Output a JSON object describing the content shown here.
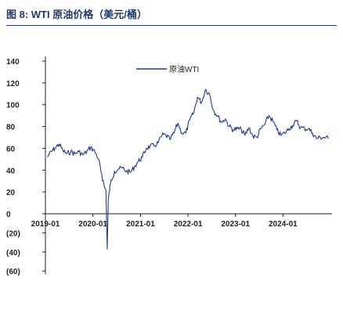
{
  "figure": {
    "title": "图 8:  WTI 原油价格（美元/桶）"
  },
  "chart_data": {
    "type": "line",
    "title": "图 8:  WTI 原油价格（美元/桶）",
    "xlabel": "",
    "ylabel": "",
    "ylim": [
      -60,
      140
    ],
    "y_ticks": [
      "140",
      "120",
      "100",
      "80",
      "60",
      "40",
      "20",
      "0",
      "(20)",
      "(40)",
      "(60)"
    ],
    "x_ticks": [
      "2019-01",
      "2020-01",
      "2021-01",
      "2022-01",
      "2023-01",
      "2024-01"
    ],
    "legend": {
      "position": "top-center",
      "entries": [
        "原油WTI"
      ]
    },
    "grid": false,
    "colors": {
      "line": "#1f3b8c",
      "axis": "#1f1f1f",
      "title": "#1f3b6b"
    },
    "series": [
      {
        "name": "原油WTI",
        "x": [
          "2019-01",
          "2019-02",
          "2019-03",
          "2019-04",
          "2019-05",
          "2019-06",
          "2019-07",
          "2019-08",
          "2019-09",
          "2019-10",
          "2019-11",
          "2019-12",
          "2020-01",
          "2020-02",
          "2020-03",
          "2020-04-10",
          "2020-04-20",
          "2020-04-28",
          "2020-05",
          "2020-06",
          "2020-07",
          "2020-08",
          "2020-09",
          "2020-10",
          "2020-11",
          "2020-12",
          "2021-01",
          "2021-02",
          "2021-03",
          "2021-04",
          "2021-05",
          "2021-06",
          "2021-07",
          "2021-08",
          "2021-09",
          "2021-10",
          "2021-11",
          "2021-12",
          "2022-01",
          "2022-02",
          "2022-03",
          "2022-04",
          "2022-05",
          "2022-06",
          "2022-07",
          "2022-08",
          "2022-09",
          "2022-10",
          "2022-11",
          "2022-12",
          "2023-01",
          "2023-02",
          "2023-03",
          "2023-04",
          "2023-05",
          "2023-06",
          "2023-07",
          "2023-08",
          "2023-09",
          "2023-10",
          "2023-11",
          "2023-12",
          "2024-01",
          "2024-02",
          "2024-03",
          "2024-04",
          "2024-05",
          "2024-06",
          "2024-07",
          "2024-08",
          "2024-09",
          "2024-10",
          "2024-11",
          "2024-12"
        ],
        "values": [
          52,
          57,
          60,
          64,
          58,
          55,
          57,
          55,
          57,
          54,
          57,
          61,
          57,
          50,
          30,
          22,
          -37,
          12,
          28,
          39,
          41,
          42,
          39,
          38,
          43,
          48,
          52,
          60,
          62,
          62,
          65,
          72,
          72,
          68,
          74,
          83,
          74,
          74,
          86,
          93,
          107,
          102,
          114,
          110,
          95,
          90,
          84,
          87,
          80,
          77,
          78,
          77,
          72,
          79,
          71,
          70,
          78,
          82,
          90,
          85,
          77,
          72,
          74,
          78,
          81,
          85,
          79,
          78,
          78,
          74,
          69,
          70,
          70,
          69
        ]
      }
    ]
  }
}
